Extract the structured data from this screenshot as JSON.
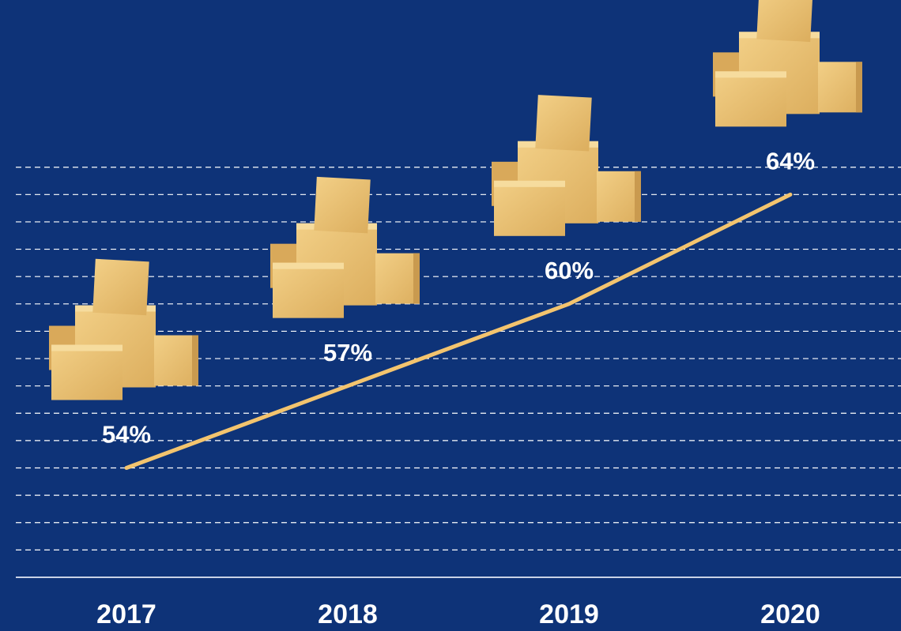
{
  "chart_data": {
    "type": "line",
    "categories": [
      "2017",
      "2018",
      "2019",
      "2020"
    ],
    "series": [
      {
        "values": [
          54,
          57,
          60,
          64
        ],
        "value_labels": [
          "54%",
          "57%",
          "60%",
          "64%"
        ],
        "color": "#f3c46e"
      }
    ],
    "ylim": [
      50,
      71
    ],
    "yticks": [
      51,
      52,
      53,
      54,
      55,
      56,
      57,
      58,
      59,
      60,
      61,
      62,
      63,
      64,
      65
    ],
    "grid": true
  }
}
